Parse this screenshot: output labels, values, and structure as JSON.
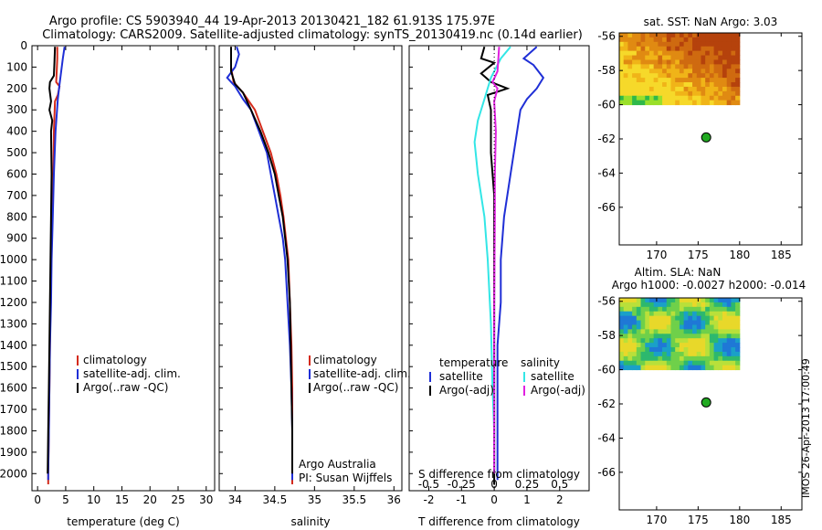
{
  "header": {
    "line1": "Argo profile: CS 5903940_44 19-Apr-2013 20130421_182 61.913S 175.97E",
    "line2": "Climatology: CARS2009. Satellite-adjusted climatology: synTS_20130419.nc (0.14d earlier)"
  },
  "side_stamp": "IMOS 26-Apr-2013 17:00:49",
  "colors": {
    "climatology": "#d42a1a",
    "satellite": "#1f2fd6",
    "argo": "#000000",
    "satellite_s": "#33e6e6",
    "argo_s": "#e020e0",
    "marker": "#22aa22"
  },
  "chart_data": [
    {
      "id": "temperature",
      "type": "line",
      "xlabel": "temperature (deg C)",
      "ylabel": "",
      "xlim": [
        -1,
        31.5
      ],
      "ylim": [
        2080,
        0
      ],
      "xticks": [
        "0",
        "5",
        "10",
        "15",
        "20",
        "25",
        "30"
      ],
      "xtick_values": [
        0,
        5,
        10,
        15,
        20,
        25,
        30
      ],
      "yticks": [
        "0",
        "100",
        "200",
        "300",
        "400",
        "500",
        "600",
        "700",
        "800",
        "900",
        "1000",
        "1100",
        "1200",
        "1300",
        "1400",
        "1500",
        "1600",
        "1700",
        "1800",
        "1900",
        "2000"
      ],
      "ytick_values": [
        0,
        100,
        200,
        300,
        400,
        500,
        600,
        700,
        800,
        900,
        1000,
        1100,
        1200,
        1300,
        1400,
        1500,
        1600,
        1700,
        1800,
        1900,
        2000
      ],
      "legend": [
        "climatology",
        "satellite-adj. clim.",
        "Argo(..raw -QC)"
      ],
      "series": [
        {
          "name": "climatology",
          "color": "climatology",
          "points": [
            [
              3.5,
              5
            ],
            [
              3.5,
              60
            ],
            [
              3.4,
              120
            ],
            [
              3.3,
              170
            ],
            [
              3.9,
              190
            ],
            [
              3.6,
              230
            ],
            [
              3.1,
              260
            ],
            [
              2.9,
              400
            ],
            [
              2.8,
              600
            ],
            [
              2.6,
              800
            ],
            [
              2.4,
              1000
            ],
            [
              2.3,
              1200
            ],
            [
              2.2,
              1400
            ],
            [
              2.1,
              1600
            ],
            [
              2.0,
              1800
            ],
            [
              1.9,
              2000
            ],
            [
              1.9,
              2050
            ]
          ]
        },
        {
          "name": "satellite-adj. clim.",
          "color": "satellite",
          "points": [
            [
              4.8,
              5
            ],
            [
              4.5,
              60
            ],
            [
              4.2,
              120
            ],
            [
              3.9,
              180
            ],
            [
              3.6,
              250
            ],
            [
              3.2,
              400
            ],
            [
              2.9,
              600
            ],
            [
              2.7,
              800
            ],
            [
              2.5,
              1000
            ],
            [
              2.4,
              1200
            ],
            [
              2.2,
              1400
            ],
            [
              2.1,
              1600
            ],
            [
              2.0,
              1800
            ],
            [
              1.9,
              2000
            ],
            [
              1.9,
              2030
            ]
          ]
        },
        {
          "name": "Argo(..raw -QC)",
          "color": "argo",
          "points": [
            [
              3.1,
              5
            ],
            [
              3.0,
              80
            ],
            [
              2.9,
              140
            ],
            [
              2.2,
              170
            ],
            [
              2.1,
              200
            ],
            [
              2.4,
              260
            ],
            [
              2.1,
              300
            ],
            [
              2.6,
              350
            ],
            [
              2.4,
              400
            ],
            [
              2.5,
              600
            ],
            [
              2.4,
              800
            ],
            [
              2.3,
              1000
            ],
            [
              2.2,
              1200
            ],
            [
              2.1,
              1400
            ],
            [
              2.0,
              1600
            ],
            [
              1.9,
              1800
            ],
            [
              1.8,
              2000
            ]
          ]
        }
      ]
    },
    {
      "id": "salinity",
      "type": "line",
      "xlabel": "salinity",
      "ylabel": "",
      "xlim": [
        33.8,
        36.1
      ],
      "ylim": [
        2080,
        0
      ],
      "xticks": [
        "34",
        "34.5",
        "35",
        "35.5",
        "36"
      ],
      "xtick_values": [
        34,
        34.5,
        35,
        35.5,
        36
      ],
      "legend": [
        "climatology",
        "satellite-adj. clim.",
        "Argo(..raw -QC)"
      ],
      "annotations": [
        "Argo Australia",
        "PI: Susan Wijffels"
      ],
      "series": [
        {
          "name": "climatology",
          "color": "climatology",
          "points": [
            [
              33.95,
              5
            ],
            [
              33.95,
              100
            ],
            [
              33.98,
              170
            ],
            [
              34.1,
              220
            ],
            [
              34.25,
              300
            ],
            [
              34.35,
              400
            ],
            [
              34.45,
              500
            ],
            [
              34.52,
              600
            ],
            [
              34.57,
              700
            ],
            [
              34.61,
              800
            ],
            [
              34.64,
              900
            ],
            [
              34.67,
              1000
            ],
            [
              34.69,
              1200
            ],
            [
              34.71,
              1400
            ],
            [
              34.72,
              1600
            ],
            [
              34.72,
              1800
            ],
            [
              34.72,
              2050
            ]
          ]
        },
        {
          "name": "satellite-adj. clim.",
          "color": "satellite",
          "points": [
            [
              34.02,
              5
            ],
            [
              34.05,
              40
            ],
            [
              34.0,
              100
            ],
            [
              33.9,
              150
            ],
            [
              34.0,
              190
            ],
            [
              34.1,
              250
            ],
            [
              34.2,
              300
            ],
            [
              34.3,
              400
            ],
            [
              34.4,
              500
            ],
            [
              34.45,
              600
            ],
            [
              34.5,
              700
            ],
            [
              34.55,
              800
            ],
            [
              34.6,
              900
            ],
            [
              34.63,
              1000
            ],
            [
              34.66,
              1200
            ],
            [
              34.69,
              1400
            ],
            [
              34.71,
              1600
            ],
            [
              34.72,
              1800
            ],
            [
              34.72,
              2030
            ]
          ]
        },
        {
          "name": "Argo(..raw -QC)",
          "color": "argo",
          "points": [
            [
              33.95,
              5
            ],
            [
              33.95,
              120
            ],
            [
              34.0,
              180
            ],
            [
              34.1,
              220
            ],
            [
              34.2,
              300
            ],
            [
              34.32,
              400
            ],
            [
              34.42,
              500
            ],
            [
              34.5,
              600
            ],
            [
              34.55,
              700
            ],
            [
              34.6,
              800
            ],
            [
              34.63,
              900
            ],
            [
              34.66,
              1000
            ],
            [
              34.69,
              1200
            ],
            [
              34.7,
              1400
            ],
            [
              34.71,
              1600
            ],
            [
              34.72,
              1800
            ],
            [
              34.72,
              2000
            ]
          ]
        }
      ]
    },
    {
      "id": "difference",
      "type": "line",
      "xlabel": "T difference from climatology",
      "xlabel_top": "S difference from climatology",
      "ylabel": "",
      "xlim": [
        -2.6,
        2.9
      ],
      "ylim": [
        2080,
        0
      ],
      "xticks": [
        "-2",
        "-1",
        "0",
        "1",
        "2"
      ],
      "xtick_values": [
        -2,
        -1,
        0,
        1,
        2
      ],
      "s_xticks": [
        "-0.5",
        "-0.25",
        "0",
        "0.25",
        "0.5"
      ],
      "s_xtick_values": [
        -0.5,
        -0.25,
        0,
        0.25,
        0.5
      ],
      "legend_temperature": {
        "title": "temperature",
        "items": [
          "satellite",
          "Argo(-adj)"
        ]
      },
      "legend_salinity": {
        "title": "salinity",
        "items": [
          "satellite",
          "Argo(-adj)"
        ]
      },
      "series": [
        {
          "name": "satellite",
          "color": "satellite",
          "points": [
            [
              1.3,
              5
            ],
            [
              0.9,
              60
            ],
            [
              1.2,
              90
            ],
            [
              1.5,
              150
            ],
            [
              1.3,
              200
            ],
            [
              1.0,
              250
            ],
            [
              0.8,
              300
            ],
            [
              0.7,
              400
            ],
            [
              0.5,
              600
            ],
            [
              0.3,
              800
            ],
            [
              0.2,
              1000
            ],
            [
              0.2,
              1200
            ],
            [
              0.1,
              1400
            ],
            [
              0.1,
              1600
            ],
            [
              0.1,
              1800
            ],
            [
              0.1,
              2030
            ]
          ]
        },
        {
          "name": "Argo(-adj)",
          "color": "argo",
          "points": [
            [
              -0.3,
              5
            ],
            [
              -0.4,
              60
            ],
            [
              0.0,
              80
            ],
            [
              -0.4,
              130
            ],
            [
              -0.1,
              170
            ],
            [
              0.4,
              200
            ],
            [
              -0.2,
              230
            ],
            [
              -0.1,
              300
            ],
            [
              -0.1,
              500
            ],
            [
              0.0,
              700
            ],
            [
              0.0,
              1000
            ],
            [
              0.0,
              1400
            ],
            [
              0.0,
              1800
            ],
            [
              0.0,
              2050
            ]
          ]
        },
        {
          "name": "satellite",
          "color": "satellite_s",
          "points": [
            [
              0.5,
              5
            ],
            [
              0.2,
              60
            ],
            [
              -0.1,
              150
            ],
            [
              -0.3,
              250
            ],
            [
              -0.5,
              350
            ],
            [
              -0.6,
              450
            ],
            [
              -0.5,
              600
            ],
            [
              -0.3,
              800
            ],
            [
              -0.2,
              1000
            ],
            [
              -0.1,
              1300
            ],
            [
              -0.05,
              1600
            ],
            [
              0.0,
              1800
            ],
            [
              0.0,
              2000
            ]
          ]
        },
        {
          "name": "Argo(-adj)",
          "color": "argo_s",
          "points": [
            [
              0.15,
              5
            ],
            [
              0.1,
              120
            ],
            [
              -0.05,
              170
            ],
            [
              0.1,
              200
            ],
            [
              0.0,
              260
            ],
            [
              0.05,
              400
            ],
            [
              0.02,
              600
            ],
            [
              0.02,
              800
            ],
            [
              0.0,
              1200
            ],
            [
              0.0,
              1600
            ],
            [
              0.0,
              1900
            ],
            [
              0.0,
              2000
            ]
          ]
        }
      ]
    },
    {
      "id": "sst-map",
      "type": "heatmap",
      "title": "sat. SST: NaN Argo: 3.03",
      "xlim": [
        165.5,
        187.5
      ],
      "ylim": [
        -68.2,
        -55.8
      ],
      "xticks": [
        "170",
        "175",
        "180",
        "185"
      ],
      "xtick_values": [
        170,
        175,
        180,
        185
      ],
      "yticks": [
        "-56",
        "-58",
        "-60",
        "-62",
        "-64",
        "-66"
      ],
      "ytick_values": [
        -56,
        -58,
        -60,
        -62,
        -64,
        -66
      ],
      "argo_position": [
        175.97,
        -61.913
      ]
    },
    {
      "id": "sla-map",
      "type": "heatmap",
      "title": "Altim. SLA: NaN",
      "subtitle": "Argo h1000: -0.0027 h2000: -0.014",
      "xlim": [
        165.5,
        187.5
      ],
      "ylim": [
        -68.2,
        -55.8
      ],
      "xticks": [
        "170",
        "175",
        "180",
        "185"
      ],
      "xtick_values": [
        170,
        175,
        180,
        185
      ],
      "yticks": [
        "-56",
        "-58",
        "-60",
        "-62",
        "-64",
        "-66"
      ],
      "ytick_values": [
        -56,
        -58,
        -60,
        -62,
        -64,
        -66
      ],
      "argo_position": [
        175.97,
        -61.913
      ]
    }
  ]
}
